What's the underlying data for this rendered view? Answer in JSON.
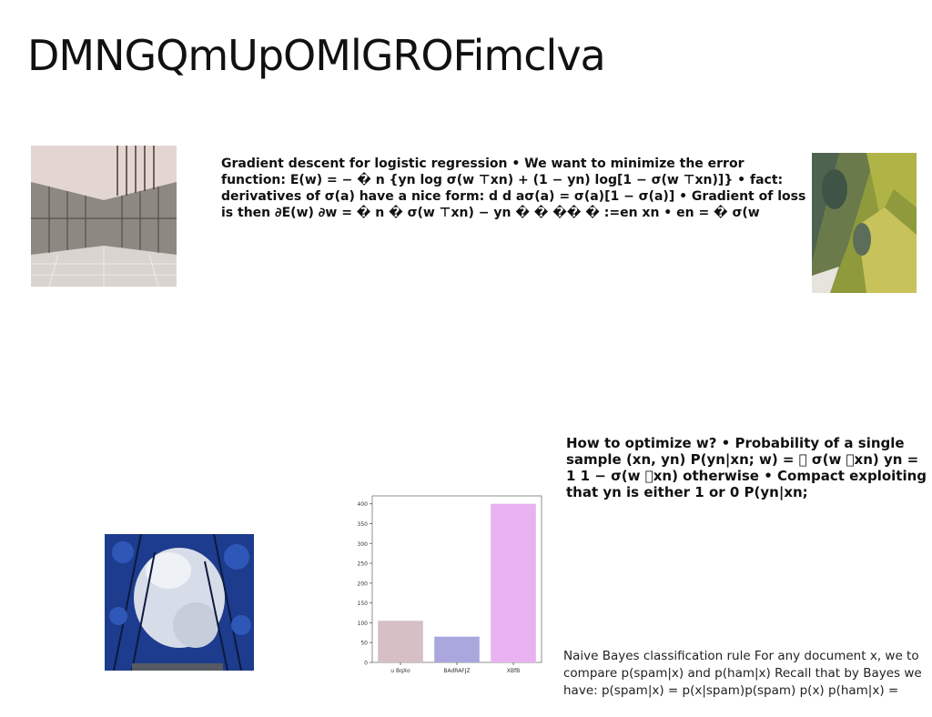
{
  "page": {
    "title": "DMNGQmUpOMlGROFimclva"
  },
  "text_blocks": {
    "gradient": "Gradient descent for logistic regression • We want to minimize the error function: E(w) = − � n {yn log σ(w ⊤xn) + (1 − yn) log[1 − σ(w ⊤xn)]} • fact: derivatives of σ(a) have a nice form: d d aσ(a) = σ(a)[1 − σ(a)] • Gradient of loss is then ∂E(w) ∂w = � n � σ(w ⊤xn) − yn � � �� � :=en xn • en = � σ(w",
    "optimize": "How to optimize w? • Probability of a single sample (xn, yn) P(yn|xn; w) = ￿ σ(w ￿xn) yn = 1 1 − σ(w ￿xn) otherwise • Compact exploiting that yn is either 1 or 0 P(yn|xn;",
    "naive_bayes": "Naive Bayes classification rule For any document x, we to compare p(spam|x) and p(ham|x) Recall that by Bayes we have: p(spam|x) = p(x|spam)p(spam) p(x) p(ham|x) ="
  },
  "images": {
    "building": "building-interior-photo",
    "moss": "moss-rock-photo",
    "trees": "blue-trees-sky-photo"
  },
  "chart_data": {
    "type": "bar",
    "categories": [
      "u BqXo",
      "BAdRAFJZ",
      "XBfB"
    ],
    "values": [
      105,
      65,
      400
    ],
    "colors": [
      "#d6c0c5",
      "#a9a7de",
      "#e8b2f1"
    ],
    "ylim": [
      0,
      420
    ],
    "yticks": [
      0,
      50,
      100,
      150,
      200,
      250,
      300,
      350,
      400
    ],
    "title": "",
    "xlabel": "",
    "ylabel": "",
    "grid": false
  }
}
